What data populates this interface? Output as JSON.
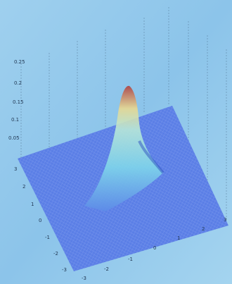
{
  "z_ticks": [
    "0.25",
    "0.2",
    "0.15",
    "0.1",
    "0.05"
  ],
  "y_ticks": [
    "3",
    "2",
    "1",
    "0",
    "-1",
    "-2",
    "-3"
  ],
  "x_ticks": [
    "-3",
    "-2",
    "-1",
    "0",
    "1",
    "2",
    "3"
  ]
}
